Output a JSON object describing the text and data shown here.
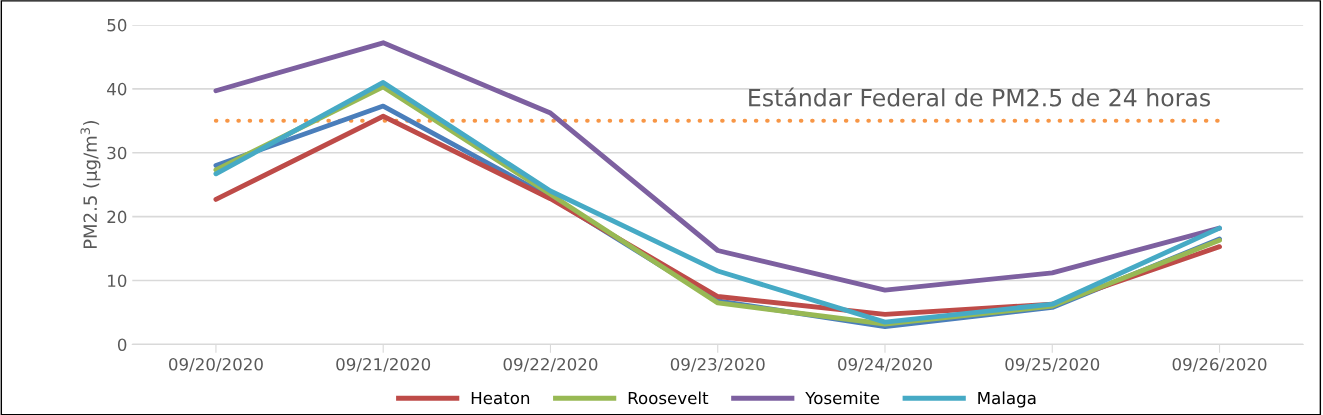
{
  "chart_data": {
    "type": "line",
    "ylabel": "PM2.5 (µg/m$^{3}$)",
    "categories": [
      "09/20/2020",
      "09/21/2020",
      "09/22/2020",
      "09/23/2020",
      "09/24/2020",
      "09/25/2020",
      "09/26/2020"
    ],
    "series": [
      {
        "color": "#4a7ebb",
        "values": [
          28,
          37.3,
          23,
          6.8,
          2.8,
          5.8,
          16.5
        ]
      },
      {
        "name": "Heaton",
        "color": "#be4b48",
        "values": [
          22.7,
          35.7,
          22.8,
          7.5,
          4.7,
          6.3,
          15.3
        ]
      },
      {
        "name": "Roosevelt",
        "color": "#98b954",
        "values": [
          27.3,
          40.3,
          23.5,
          6.5,
          3.2,
          6,
          16.3
        ]
      },
      {
        "name": "Yosemite",
        "color": "#7d60a0",
        "values": [
          39.7,
          47.2,
          36.2,
          14.7,
          8.5,
          11.2,
          18.2
        ]
      },
      {
        "name": "Malaga",
        "color": "#46aac5",
        "values": [
          26.7,
          41,
          24,
          11.5,
          3.5,
          6.3,
          18.2
        ]
      }
    ],
    "ylim": [
      0,
      50
    ],
    "yticks": [
      0,
      10,
      20,
      30,
      40,
      50
    ],
    "grid": "y",
    "legend": "bottom",
    "marker": "none",
    "line_style": "solid",
    "ref_lines": [
      {
        "axis": "y",
        "value": 35,
        "label": "Estándar Federal de PM2.5 de 24 horas",
        "color": "#f79646",
        "line_style": "dotted"
      }
    ]
  }
}
